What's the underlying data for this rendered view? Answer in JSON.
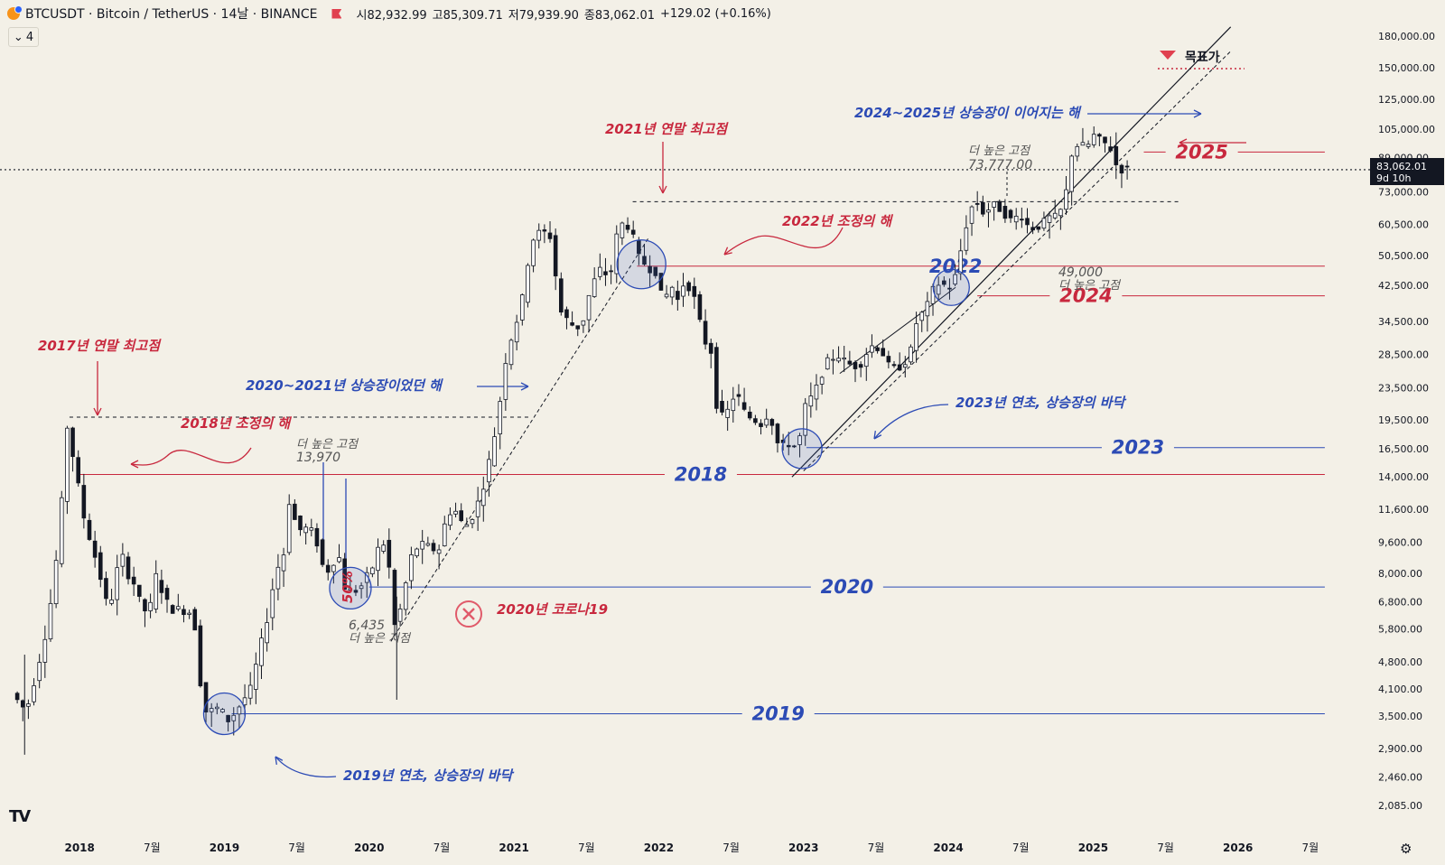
{
  "header": {
    "symbol": "BTCUSDT · Bitcoin / TetherUS · 14날 · BINANCE",
    "open": "시82,932.99",
    "high": "고85,309.71",
    "low": "저79,939.90",
    "close": "종83,062.01",
    "change": "+129.02 (+0.16%)",
    "interval_badge": "4",
    "chevron_icon": "chevron-down-icon",
    "logo": "TV"
  },
  "colors": {
    "red": "#c8283e",
    "blue": "#2c4bb5",
    "up": "#ffffff",
    "down": "#131722",
    "bg": "#f3f0e7"
  },
  "price_badge": {
    "price": "83,062.01",
    "countdown": "9d 10h"
  },
  "chart_data": {
    "type": "candlestick",
    "y_scale": "log",
    "y_ticks": [
      180000,
      150000,
      125000,
      105000,
      89000,
      73000,
      60500,
      50500,
      42500,
      34500,
      28500,
      23500,
      19500,
      16500,
      14000,
      11600,
      9600,
      8000,
      6800,
      5800,
      4800,
      4100,
      3500,
      2900,
      2460,
      2085
    ],
    "y_tick_labels": [
      "180,000.00",
      "150,000.00",
      "125,000.00",
      "105,000.00",
      "89,000.00",
      "73,000.00",
      "60,500.00",
      "50,500.00",
      "42,500.00",
      "34,500.00",
      "28,500.00",
      "23,500.00",
      "19,500.00",
      "16,500.00",
      "14,000.00",
      "11,600.00",
      "9,600.00",
      "8,000.00",
      "6,800.00",
      "5,800.00",
      "4,800.00",
      "4,100.00",
      "3,500.00",
      "2,900.00",
      "2,460.00",
      "2,085.00"
    ],
    "x_ticks": [
      "2018",
      "7월",
      "2019",
      "7월",
      "2020",
      "7월",
      "2021",
      "7월",
      "2022",
      "7월",
      "2023",
      "7월",
      "2024",
      "7월",
      "2025",
      "7월",
      "2026",
      "7월"
    ],
    "x_tick_values": [
      2018.0,
      2018.5,
      2019.0,
      2019.5,
      2020.0,
      2020.5,
      2021.0,
      2021.5,
      2022.0,
      2022.5,
      2023.0,
      2023.5,
      2024.0,
      2024.5,
      2025.0,
      2025.5,
      2026.0,
      2026.5
    ],
    "x_range": [
      2017.45,
      2026.9
    ],
    "price_path": [
      [
        2017.55,
        4000
      ],
      [
        2017.65,
        3600
      ],
      [
        2017.72,
        4500
      ],
      [
        2017.8,
        6000
      ],
      [
        2017.88,
        10000
      ],
      [
        2017.93,
        19000
      ],
      [
        2017.97,
        16000
      ],
      [
        2018.05,
        11000
      ],
      [
        2018.1,
        9500
      ],
      [
        2018.15,
        8200
      ],
      [
        2018.2,
        6800
      ],
      [
        2018.25,
        7000
      ],
      [
        2018.3,
        9200
      ],
      [
        2018.35,
        8000
      ],
      [
        2018.4,
        7500
      ],
      [
        2018.45,
        6500
      ],
      [
        2018.5,
        6400
      ],
      [
        2018.55,
        8000
      ],
      [
        2018.6,
        7000
      ],
      [
        2018.65,
        6500
      ],
      [
        2018.7,
        6500
      ],
      [
        2018.78,
        6400
      ],
      [
        2018.82,
        5800
      ],
      [
        2018.86,
        4000
      ],
      [
        2018.9,
        3500
      ],
      [
        2018.95,
        3700
      ],
      [
        2019.0,
        3600
      ],
      [
        2019.05,
        3400
      ],
      [
        2019.12,
        3700
      ],
      [
        2019.2,
        4100
      ],
      [
        2019.26,
        5100
      ],
      [
        2019.32,
        6300
      ],
      [
        2019.37,
        8000
      ],
      [
        2019.43,
        9000
      ],
      [
        2019.47,
        12500
      ],
      [
        2019.5,
        11000
      ],
      [
        2019.55,
        10200
      ],
      [
        2019.6,
        10500
      ],
      [
        2019.65,
        9800
      ],
      [
        2019.7,
        8300
      ],
      [
        2019.75,
        8100
      ],
      [
        2019.8,
        9200
      ],
      [
        2019.85,
        7400
      ],
      [
        2019.9,
        7200
      ],
      [
        2019.95,
        7300
      ],
      [
        2020.05,
        8400
      ],
      [
        2020.1,
        9800
      ],
      [
        2020.15,
        9000
      ],
      [
        2020.18,
        6000
      ],
      [
        2020.2,
        5900
      ],
      [
        2020.25,
        6800
      ],
      [
        2020.3,
        8700
      ],
      [
        2020.35,
        9300
      ],
      [
        2020.4,
        9500
      ],
      [
        2020.45,
        9200
      ],
      [
        2020.5,
        9200
      ],
      [
        2020.55,
        11000
      ],
      [
        2020.6,
        11800
      ],
      [
        2020.65,
        10800
      ],
      [
        2020.7,
        10600
      ],
      [
        2020.75,
        11500
      ],
      [
        2020.8,
        13000
      ],
      [
        2020.85,
        15500
      ],
      [
        2020.9,
        19000
      ],
      [
        2020.97,
        29000
      ],
      [
        2021.02,
        33000
      ],
      [
        2021.07,
        38000
      ],
      [
        2021.12,
        50000
      ],
      [
        2021.16,
        57000
      ],
      [
        2021.22,
        58000
      ],
      [
        2021.28,
        56000
      ],
      [
        2021.33,
        37000
      ],
      [
        2021.38,
        35000
      ],
      [
        2021.45,
        33000
      ],
      [
        2021.5,
        35000
      ],
      [
        2021.55,
        42000
      ],
      [
        2021.62,
        47000
      ],
      [
        2021.68,
        44000
      ],
      [
        2021.73,
        57000
      ],
      [
        2021.78,
        62000
      ],
      [
        2021.83,
        58000
      ],
      [
        2021.88,
        50000
      ],
      [
        2021.95,
        47000
      ],
      [
        2022.0,
        46000
      ],
      [
        2022.05,
        38000
      ],
      [
        2022.1,
        43000
      ],
      [
        2022.15,
        39000
      ],
      [
        2022.2,
        44000
      ],
      [
        2022.26,
        40000
      ],
      [
        2022.33,
        31000
      ],
      [
        2022.38,
        29000
      ],
      [
        2022.42,
        21000
      ],
      [
        2022.47,
        19500
      ],
      [
        2022.55,
        23000
      ],
      [
        2022.62,
        20000
      ],
      [
        2022.68,
        19500
      ],
      [
        2022.73,
        19000
      ],
      [
        2022.78,
        20500
      ],
      [
        2022.85,
        16500
      ],
      [
        2022.92,
        17000
      ],
      [
        2022.98,
        16600
      ],
      [
        2023.03,
        21000
      ],
      [
        2023.1,
        23000
      ],
      [
        2023.17,
        27000
      ],
      [
        2023.25,
        28500
      ],
      [
        2023.32,
        27000
      ],
      [
        2023.4,
        26500
      ],
      [
        2023.48,
        30000
      ],
      [
        2023.55,
        29500
      ],
      [
        2023.62,
        26000
      ],
      [
        2023.68,
        26500
      ],
      [
        2023.75,
        28000
      ],
      [
        2023.8,
        34500
      ],
      [
        2023.87,
        37500
      ],
      [
        2023.93,
        43000
      ],
      [
        2024.0,
        42500
      ],
      [
        2024.05,
        42000
      ],
      [
        2024.1,
        51000
      ],
      [
        2024.15,
        62000
      ],
      [
        2024.2,
        70000
      ],
      [
        2024.27,
        64000
      ],
      [
        2024.32,
        68000
      ],
      [
        2024.38,
        66000
      ],
      [
        2024.45,
        62000
      ],
      [
        2024.52,
        64000
      ],
      [
        2024.58,
        59000
      ],
      [
        2024.65,
        60000
      ],
      [
        2024.72,
        63000
      ],
      [
        2024.78,
        63000
      ],
      [
        2024.83,
        72000
      ],
      [
        2024.87,
        91000
      ],
      [
        2024.92,
        97000
      ],
      [
        2024.97,
        94000
      ],
      [
        2025.03,
        102000
      ],
      [
        2025.08,
        97000
      ],
      [
        2025.13,
        96000
      ],
      [
        2025.18,
        85000
      ],
      [
        2025.22,
        83062
      ]
    ],
    "horizontal_levels": [
      {
        "label": "2018",
        "price": 14200,
        "color": "red",
        "x_start": 2017.98,
        "x_end": 2026.6
      },
      {
        "label": "2019",
        "price": 3550,
        "color": "blue",
        "x_start": 2019.05,
        "x_end": 2026.6
      },
      {
        "label": "2020",
        "price": 7400,
        "color": "blue",
        "x_start": 2020.0,
        "x_end": 2026.6
      },
      {
        "label": "2022",
        "price": 47500,
        "color": "red",
        "x_start": 2021.85,
        "x_end": 2026.6
      },
      {
        "label": "2023",
        "price": 16600,
        "color": "blue",
        "x_start": 2023.02,
        "x_end": 2026.6
      },
      {
        "label": "2024",
        "price": 40000,
        "color": "red",
        "x_start": 2024.2,
        "x_end": 2026.6
      },
      {
        "label": "2025",
        "price": 92000,
        "color": "red",
        "x_start": 2025.35,
        "x_end": 2026.6
      }
    ],
    "annotations": {
      "peak_2017": "2017년 연말 최고점",
      "correction_2018": "2018년 조정의 해",
      "bottom_2019": "2019년 연초, 상승장의 바닥",
      "bull_2020_2021": "2020~2021년 상승장이었던 해",
      "peak_2021": "2021년 연말 최고점",
      "correction_2022": "2022년 조정의 해",
      "bottom_2023": "2023년 연초, 상승장의 바닥",
      "bull_2024_2025": "2024~2025년 상승장이 이어지는 해",
      "target": "목표가",
      "covid_2020": "2020년 코로나19",
      "pct_50": "50%",
      "higher_high_1_title": "더 높은 고점",
      "higher_high_1_value": "13,970",
      "higher_low_title": "더 높은 저점",
      "higher_low_value": "6,435",
      "higher_high_2_title": "더 높은 고점",
      "higher_high_2_value": "73,777.00",
      "higher_high_3_title": "더 높은 고점",
      "higher_high_3_value": "49,000"
    }
  }
}
